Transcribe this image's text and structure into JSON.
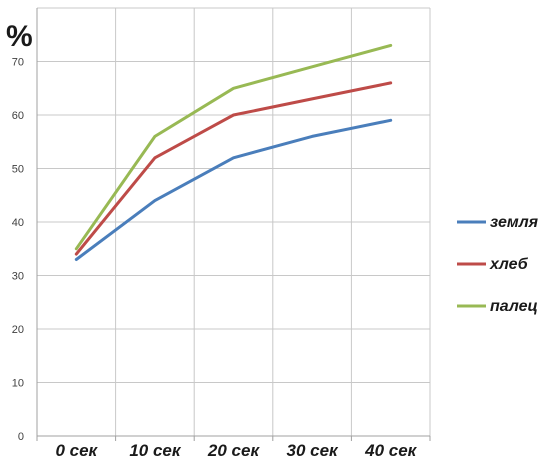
{
  "chart_data": {
    "type": "line",
    "title": "",
    "xlabel": "",
    "ylabel": "%",
    "categories": [
      "0 сек",
      "10 сек",
      "20 сек",
      "30 сек",
      "40 сек"
    ],
    "ylim": [
      0,
      80
    ],
    "yticks": [
      0,
      10,
      20,
      30,
      40,
      50,
      60,
      70
    ],
    "grid": true,
    "legend_position": "right",
    "series": [
      {
        "name": "земля",
        "color": "#4a7ebb",
        "values": [
          33,
          44,
          52,
          56,
          59
        ]
      },
      {
        "name": "хлеб",
        "color": "#be4b48",
        "values": [
          34,
          52,
          60,
          63,
          66
        ]
      },
      {
        "name": "палец",
        "color": "#98b954",
        "values": [
          35,
          56,
          65,
          69,
          73
        ]
      }
    ]
  }
}
